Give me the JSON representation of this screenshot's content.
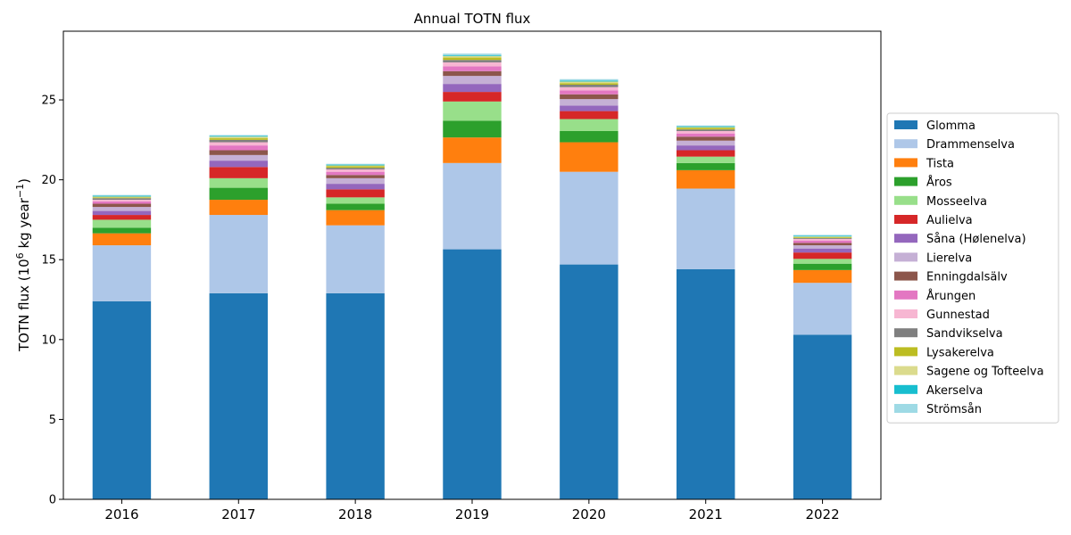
{
  "chart_data": {
    "type": "bar",
    "stacked": true,
    "title": "Annual TOTN flux",
    "ylabel": "TOTN flux (10^6 kg year^-1)",
    "xlabel": "",
    "categories": [
      "2016",
      "2017",
      "2018",
      "2019",
      "2020",
      "2021",
      "2022"
    ],
    "ylim": [
      0,
      29.3
    ],
    "yticks": [
      0,
      5,
      10,
      15,
      20,
      25
    ],
    "legend_position": "right",
    "series": [
      {
        "name": "Glomma",
        "color": "#1f77b4",
        "values": [
          12.4,
          12.9,
          12.9,
          15.65,
          14.7,
          14.4,
          10.3
        ]
      },
      {
        "name": "Drammenselva",
        "color": "#aec7e8",
        "values": [
          3.5,
          4.9,
          4.25,
          5.4,
          5.8,
          5.05,
          3.25
        ]
      },
      {
        "name": "Tista",
        "color": "#ff7f0e",
        "values": [
          0.75,
          0.95,
          0.95,
          1.6,
          1.85,
          1.15,
          0.8
        ]
      },
      {
        "name": "Åros",
        "color": "#2ca02c",
        "values": [
          0.35,
          0.75,
          0.4,
          1.05,
          0.7,
          0.45,
          0.4
        ]
      },
      {
        "name": "Mosseelva",
        "color": "#98df8a",
        "values": [
          0.5,
          0.6,
          0.4,
          1.2,
          0.75,
          0.4,
          0.3
        ]
      },
      {
        "name": "Aulielva",
        "color": "#d62728",
        "values": [
          0.3,
          0.7,
          0.5,
          0.6,
          0.5,
          0.4,
          0.4
        ]
      },
      {
        "name": "Såna (Hølenelva)",
        "color": "#9467bd",
        "values": [
          0.25,
          0.4,
          0.35,
          0.5,
          0.35,
          0.3,
          0.25
        ]
      },
      {
        "name": "Lierelva",
        "color": "#c5b0d5",
        "values": [
          0.25,
          0.35,
          0.35,
          0.5,
          0.4,
          0.3,
          0.2
        ]
      },
      {
        "name": "Enningdalsälv",
        "color": "#8c564b",
        "values": [
          0.2,
          0.3,
          0.2,
          0.3,
          0.3,
          0.25,
          0.15
        ]
      },
      {
        "name": "Årungen",
        "color": "#e377c2",
        "values": [
          0.15,
          0.3,
          0.2,
          0.3,
          0.25,
          0.2,
          0.15
        ]
      },
      {
        "name": "Gunnestad",
        "color": "#f7b6d2",
        "values": [
          0.1,
          0.2,
          0.15,
          0.25,
          0.2,
          0.15,
          0.1
        ]
      },
      {
        "name": "Sandvikselva",
        "color": "#7f7f7f",
        "values": [
          0.1,
          0.15,
          0.1,
          0.15,
          0.15,
          0.1,
          0.05
        ]
      },
      {
        "name": "Lysakerelva",
        "color": "#bcbd22",
        "values": [
          0.05,
          0.1,
          0.1,
          0.15,
          0.1,
          0.1,
          0.05
        ]
      },
      {
        "name": "Sagene og Tofteelva",
        "color": "#dbdb8d",
        "values": [
          0.05,
          0.1,
          0.05,
          0.1,
          0.1,
          0.05,
          0.05
        ]
      },
      {
        "name": "Akerselva",
        "color": "#17becf",
        "values": [
          0.05,
          0.05,
          0.05,
          0.05,
          0.05,
          0.05,
          0.05
        ]
      },
      {
        "name": "Strömsån",
        "color": "#9edae5",
        "values": [
          0.05,
          0.05,
          0.05,
          0.1,
          0.1,
          0.05,
          0.05
        ]
      }
    ]
  }
}
